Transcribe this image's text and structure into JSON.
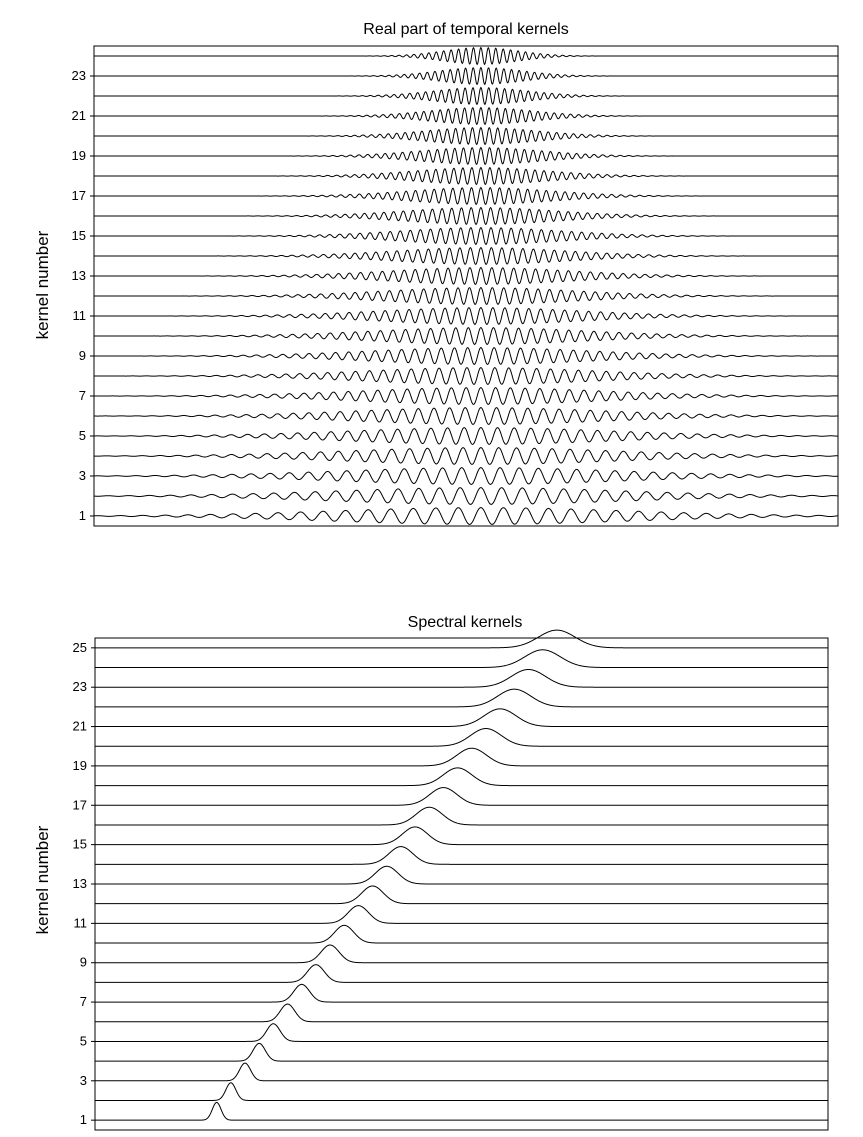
{
  "chart_data": [
    {
      "type": "line",
      "title": "Real part of temporal kernels",
      "ylabel": "kernel number",
      "xlabel": "",
      "ylim": [
        0.5,
        24.5
      ],
      "yticks": [
        1,
        3,
        5,
        7,
        9,
        11,
        13,
        15,
        17,
        19,
        21,
        23
      ],
      "kernel_count": 24,
      "xlim": [
        0,
        1
      ],
      "waveform": "gabor",
      "center": 0.52,
      "envelope_width_first": 0.2,
      "envelope_width_last": 0.05,
      "cycles_across_first": 33,
      "cycles_across_last": 100,
      "amplitude": 0.42,
      "grid": false,
      "legend": "none"
    },
    {
      "type": "line",
      "title": "Spectral kernels",
      "ylabel": "kernel number",
      "xlabel": "",
      "ylim": [
        0.5,
        25.5
      ],
      "yticks": [
        1,
        3,
        5,
        7,
        9,
        11,
        13,
        15,
        17,
        19,
        21,
        23,
        25
      ],
      "kernel_count": 25,
      "xlim": [
        0,
        1
      ],
      "waveform": "gaussian",
      "peak_first": 0.166,
      "peak_last": 0.63,
      "sigma_first": 0.006,
      "sigma_last": 0.025,
      "amplitude": 0.9,
      "grid": false,
      "legend": "none"
    }
  ]
}
